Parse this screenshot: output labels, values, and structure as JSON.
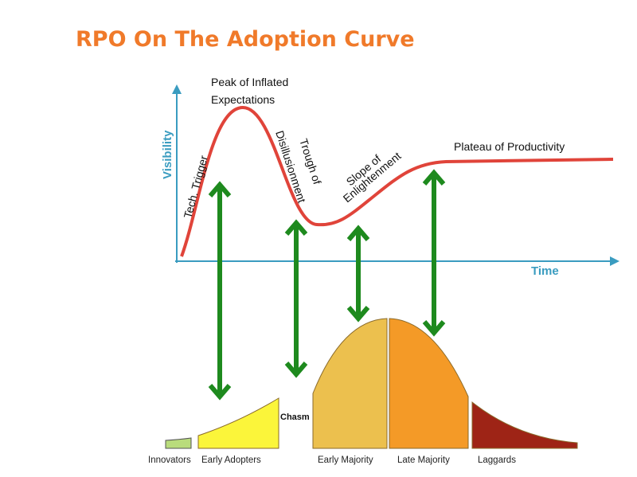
{
  "title": "RPO On The Adoption Curve",
  "hype_cycle": {
    "y_axis_label": "Visibility",
    "x_axis_label": "Time",
    "phases": {
      "tech_trigger": "Tech. Trigger",
      "peak_line1": "Peak of Inflated",
      "peak_line2": "Expectations",
      "trough_line1": "Trough of",
      "trough_line2": "Disillusionment",
      "slope_line1": "Slope of",
      "slope_line2": "Enlightenment",
      "plateau": "Plateau of Productivity"
    }
  },
  "adoption_curve": {
    "chasm": "Chasm",
    "segments": [
      "Innovators",
      "Early Adopters",
      "Early Majority",
      "Late Majority",
      "Laggards"
    ]
  },
  "colors": {
    "title": "#f07a2a",
    "axis": "#3a9cc0",
    "hype_curve": "#e0443a",
    "arrows": "#1e8a1e",
    "innovators": "#b9dc7c",
    "early_adopters": "#fbf53a",
    "early_majority": "#ecc04e",
    "late_majority": "#f49a27",
    "laggards": "#9e2416"
  }
}
